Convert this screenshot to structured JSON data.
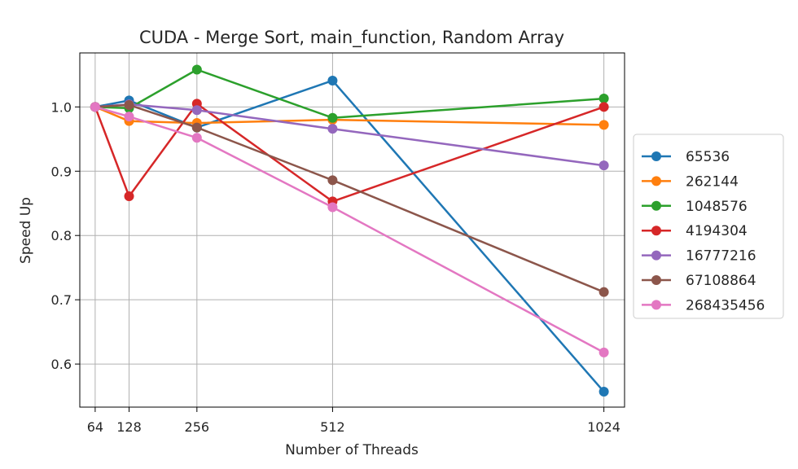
{
  "chart_data": {
    "type": "line",
    "title": "CUDA - Merge Sort, main_function, Random Array",
    "xlabel": "Number of Threads",
    "ylabel": "Speed Up",
    "x": [
      64,
      128,
      256,
      512,
      1024
    ],
    "x_tick_labels": [
      "64",
      "128",
      "256",
      "512",
      "1024"
    ],
    "xlim": [
      35,
      1063
    ],
    "ylim": [
      0.533,
      1.084
    ],
    "y_ticks": [
      0.6,
      0.7,
      0.8,
      0.9,
      1.0
    ],
    "y_tick_labels": [
      "0.6",
      "0.7",
      "0.8",
      "0.9",
      "1.0"
    ],
    "grid": true,
    "legend_position": "outside right",
    "series": [
      {
        "name": "65536",
        "color": "#1f77b4",
        "values": [
          1.0,
          1.01,
          0.968,
          1.041,
          0.557
        ]
      },
      {
        "name": "262144",
        "color": "#ff7f0e",
        "values": [
          1.0,
          0.978,
          0.975,
          0.98,
          0.972
        ]
      },
      {
        "name": "1048576",
        "color": "#2ca02c",
        "values": [
          1.0,
          0.998,
          1.058,
          0.983,
          1.013
        ]
      },
      {
        "name": "4194304",
        "color": "#d62728",
        "values": [
          1.0,
          0.861,
          1.005,
          0.853,
          1.0
        ]
      },
      {
        "name": "16777216",
        "color": "#9467bd",
        "values": [
          1.0,
          1.004,
          0.995,
          0.966,
          0.909
        ]
      },
      {
        "name": "67108864",
        "color": "#8c564b",
        "values": [
          1.0,
          1.003,
          0.968,
          0.886,
          0.712
        ]
      },
      {
        "name": "268435456",
        "color": "#e377c2",
        "values": [
          1.0,
          0.985,
          0.952,
          0.844,
          0.618
        ]
      }
    ]
  }
}
